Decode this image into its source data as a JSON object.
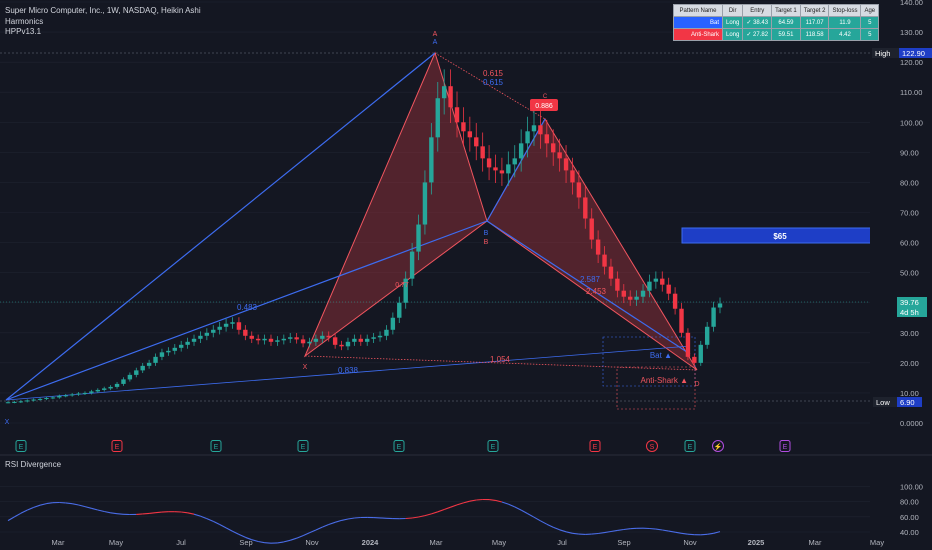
{
  "header": {
    "title": "Super Micro Computer, Inc., 1W, NASDAQ, Heikin Ashi",
    "indicator1": "Harmonics",
    "indicator2": "HPPv13.1"
  },
  "pattern_table": {
    "headers": [
      "Pattern Name",
      "Dir",
      "Entry",
      "Target 1",
      "Target 2",
      "Stop-loss",
      "Age"
    ],
    "rows": [
      {
        "name": "Bat",
        "dir": "Long",
        "entry": "38.43",
        "t1": "64.59",
        "t2": "117.07",
        "sl": "11.9",
        "age": "5",
        "color": "#2962ff"
      },
      {
        "name": "Anti-Shark",
        "dir": "Long",
        "entry": "✓ 27.82",
        "t1": "59.51",
        "t2": "118.58",
        "sl": "4.42",
        "age": "5",
        "color": "#f23645"
      }
    ]
  },
  "colors": {
    "bull": "#26a69a",
    "bear": "#f23645",
    "bat": "#3d6cf0",
    "shark": "#f0555f",
    "background": "#141722"
  },
  "price_axis": {
    "ticks": [
      "140.00",
      "130.00",
      "120.00",
      "110.00",
      "100.00",
      "90.00",
      "80.00",
      "70.00",
      "60.00",
      "50.00",
      "40.00",
      "30.00",
      "20.00",
      "10.00",
      "0.0000"
    ],
    "high_label": "High",
    "high_value": "122.90",
    "low_label": "Low",
    "low_value": "6.90",
    "current_price": "39.76",
    "countdown": "4d 5h"
  },
  "time_axis": [
    "Mar",
    "May",
    "Jul",
    "Sep",
    "Nov",
    "2024",
    "Mar",
    "May",
    "Jul",
    "Sep",
    "Nov",
    "2025",
    "Mar",
    "May"
  ],
  "pattern_labels": {
    "A_top": "A",
    "A_bottom": "A",
    "B_top": "B",
    "B_bottom": "B",
    "C": "C",
    "C_box": "0.886",
    "D": "D",
    "X1": "X",
    "X2": "X",
    "r1": "0.615",
    "r2": "0.615",
    "r3": "0.483",
    "r4": "2.453",
    "r5": "2.587",
    "r6": "1.054",
    "r7": "0.838",
    "r8": "0.77",
    "bat": "Bat ▲",
    "anti_shark": "Anti-Shark ▲"
  },
  "target_label": "$65",
  "events": [
    {
      "x": 21,
      "t": "E"
    },
    {
      "x": 117,
      "t": "E"
    },
    {
      "x": 216,
      "t": "E"
    },
    {
      "x": 303,
      "t": "E"
    },
    {
      "x": 399,
      "t": "E"
    },
    {
      "x": 493,
      "t": "E"
    },
    {
      "x": 595,
      "t": "E"
    },
    {
      "x": 652,
      "t": "S"
    },
    {
      "x": 690,
      "t": "E"
    },
    {
      "x": 718,
      "t": "⚡"
    },
    {
      "x": 785,
      "t": "E"
    }
  ],
  "rsi": {
    "title": "RSI Divergence",
    "ticks": [
      "100.00",
      "80.00",
      "60.00",
      "40.00"
    ]
  },
  "chart_data": {
    "type": "candlestick",
    "title": "Super Micro Computer, Inc., 1W, NASDAQ, Heikin Ashi",
    "price_high": 122.9,
    "price_low": 6.9,
    "last_close": 39.76,
    "ylim": [
      0,
      140
    ],
    "close_series": [
      6.9,
      7,
      7.2,
      7.5,
      7.8,
      8,
      8.3,
      8.5,
      9,
      9.2,
      9.5,
      9.8,
      10,
      10.5,
      11,
      11.5,
      12,
      13,
      14.5,
      16,
      17.5,
      19,
      20,
      22,
      23.5,
      24,
      25,
      26,
      27,
      28,
      29,
      30,
      31,
      32,
      33,
      33.5,
      31,
      29,
      28,
      27.5,
      28,
      27,
      27.5,
      28,
      28.5,
      27.8,
      26.5,
      27,
      28,
      29,
      28.5,
      26,
      25.5,
      27,
      28,
      27,
      28,
      28.5,
      29,
      31,
      35,
      40,
      48,
      57,
      66,
      80,
      95,
      108,
      112,
      105,
      100,
      97,
      95,
      92,
      88,
      85,
      84,
      83,
      86,
      88,
      93,
      97,
      99,
      96,
      93,
      90,
      88,
      84,
      80,
      75,
      68,
      61,
      56,
      52,
      48,
      44,
      42,
      41,
      42,
      44,
      47,
      48,
      46,
      43,
      38,
      30,
      22,
      20,
      26,
      32,
      38.4,
      39.76
    ],
    "bat_pattern": {
      "X": 6.9,
      "A": 122.9,
      "B": 67,
      "C": 101,
      "D": 20
    },
    "anti_shark_pattern": {
      "X": 25,
      "A": 122.9,
      "B": 67,
      "C": 101,
      "D": 18
    },
    "target_box": 65,
    "ratios": {
      "XB": 0.483,
      "AC": 0.615,
      "BD_shark": 2.453,
      "BD_bat": 2.587,
      "XD_shark": 1.054,
      "XD_bat": 0.838,
      "C": 0.886
    }
  }
}
